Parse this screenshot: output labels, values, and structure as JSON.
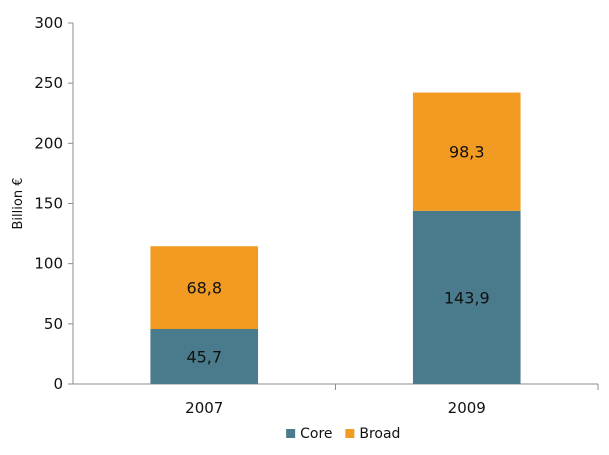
{
  "chart_data": {
    "type": "bar",
    "stacked": true,
    "categories": [
      "2007",
      "2009"
    ],
    "series": [
      {
        "name": "Core",
        "values": [
          45.7,
          143.9
        ],
        "labels": [
          "45,7",
          "143,9"
        ],
        "color": "#4a7b8c"
      },
      {
        "name": "Broad",
        "values": [
          68.8,
          98.3
        ],
        "labels": [
          "68,8",
          "98,3"
        ],
        "color": "#f29b23"
      }
    ],
    "title": "",
    "xlabel": "",
    "ylabel": "Billion €",
    "ylim": [
      0,
      300
    ],
    "yticks": [
      0,
      50,
      100,
      150,
      200,
      250,
      300
    ],
    "grid": false,
    "legend_position": "bottom"
  }
}
